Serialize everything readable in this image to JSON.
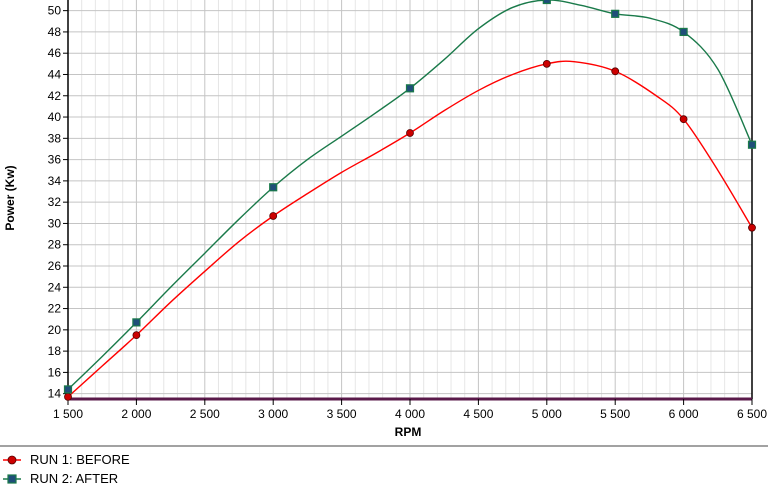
{
  "chart_data": {
    "type": "line",
    "xlabel": "RPM",
    "ylabel": "Power (Kw)",
    "xlim": [
      1500,
      6500
    ],
    "ylim": [
      13.5,
      51
    ],
    "x_ticks": [
      1500,
      2000,
      2500,
      3000,
      3500,
      4000,
      4500,
      5000,
      5500,
      6000,
      6500
    ],
    "x_tick_labels": [
      "1 500",
      "2 000",
      "2 500",
      "3 000",
      "3 500",
      "4 000",
      "4 500",
      "5 000",
      "5 500",
      "6 000",
      "6 500"
    ],
    "y_ticks": [
      14,
      16,
      18,
      20,
      22,
      24,
      26,
      28,
      30,
      32,
      34,
      36,
      38,
      40,
      42,
      44,
      46,
      48,
      50
    ],
    "y_tick_labels": [
      "14",
      "16",
      "18",
      "20",
      "22",
      "24",
      "26",
      "28",
      "30",
      "32",
      "34",
      "36",
      "38",
      "40",
      "42",
      "44",
      "46",
      "48",
      "50"
    ],
    "grid": true,
    "legend_position": "bottom-left",
    "series": [
      {
        "name": "RUN 1: BEFORE",
        "color": "#ff0000",
        "marker": "circle",
        "marker_color": "#cc0000",
        "curve_x": [
          1500,
          1750,
          2000,
          2250,
          2500,
          2750,
          3000,
          3250,
          3500,
          3750,
          4000,
          4250,
          4500,
          4750,
          5000,
          5200,
          5500,
          5800,
          6000,
          6250,
          6500
        ],
        "curve_y": [
          13.7,
          16.6,
          19.5,
          22.6,
          25.5,
          28.3,
          30.7,
          32.8,
          34.8,
          36.6,
          38.5,
          40.6,
          42.5,
          44.0,
          45.0,
          45.2,
          44.3,
          42.0,
          39.8,
          35.0,
          29.6
        ],
        "markers_x": [
          1500,
          2000,
          3000,
          4000,
          5000,
          5500,
          6000,
          6500
        ],
        "markers_y": [
          13.7,
          19.5,
          30.7,
          38.5,
          45.0,
          44.3,
          39.8,
          29.6
        ]
      },
      {
        "name": "RUN 2: AFTER",
        "color": "#1a7a4a",
        "marker": "square",
        "marker_color": "#1f4e79",
        "curve_x": [
          1500,
          1750,
          2000,
          2250,
          2500,
          2750,
          3000,
          3250,
          3500,
          3750,
          4000,
          4250,
          4500,
          4750,
          5000,
          5250,
          5500,
          5750,
          6000,
          6250,
          6500
        ],
        "curve_y": [
          14.4,
          17.5,
          20.7,
          24.0,
          27.2,
          30.4,
          33.4,
          36.0,
          38.2,
          40.4,
          42.7,
          45.4,
          48.3,
          50.3,
          51.0,
          50.5,
          49.7,
          49.3,
          48.0,
          44.5,
          37.4
        ],
        "markers_x": [
          1500,
          2000,
          3000,
          4000,
          5000,
          5500,
          6000,
          6500
        ],
        "markers_y": [
          14.4,
          20.7,
          33.4,
          42.7,
          51.0,
          49.7,
          48.0,
          37.4
        ]
      }
    ]
  }
}
